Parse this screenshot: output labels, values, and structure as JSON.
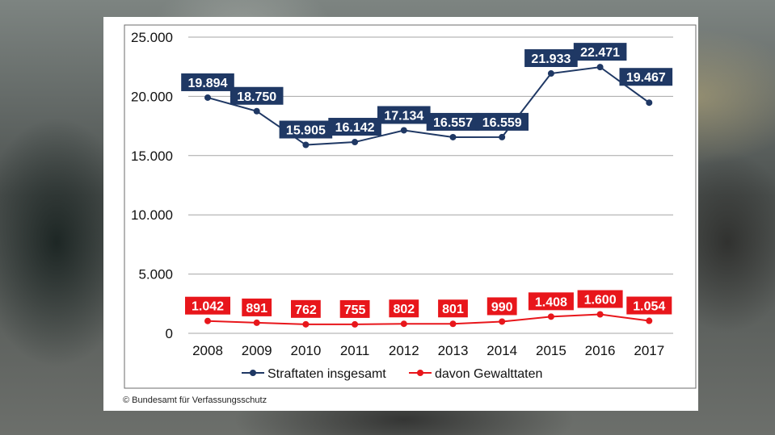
{
  "copyright": "© Bundesamt für Verfassungsschutz",
  "chart_data": {
    "type": "line",
    "x": [
      "2008",
      "2009",
      "2010",
      "2011",
      "2012",
      "2013",
      "2014",
      "2015",
      "2016",
      "2017"
    ],
    "series": [
      {
        "name": "Straftaten insgesamt",
        "color": "#1f3864",
        "values": [
          19894,
          18750,
          15905,
          16142,
          17134,
          16557,
          16559,
          21933,
          22471,
          19467
        ],
        "labels": [
          "19.894",
          "18.750",
          "15.905",
          "16.142",
          "17.134",
          "16.557",
          "16.559",
          "21.933",
          "22.471",
          "19.467"
        ]
      },
      {
        "name": "davon Gewalttaten",
        "color": "#e8161b",
        "values": [
          1042,
          891,
          762,
          755,
          802,
          801,
          990,
          1408,
          1600,
          1054
        ],
        "labels": [
          "1.042",
          "891",
          "762",
          "755",
          "802",
          "801",
          "990",
          "1.408",
          "1.600",
          "1.054"
        ]
      }
    ],
    "y_ticks": [
      0,
      5000,
      10000,
      15000,
      20000,
      25000
    ],
    "y_tick_labels": [
      "0",
      "5.000",
      "10.000",
      "15.000",
      "20.000",
      "25.000"
    ],
    "ylim": [
      0,
      25000
    ],
    "grid": true,
    "legend": "bottom"
  }
}
